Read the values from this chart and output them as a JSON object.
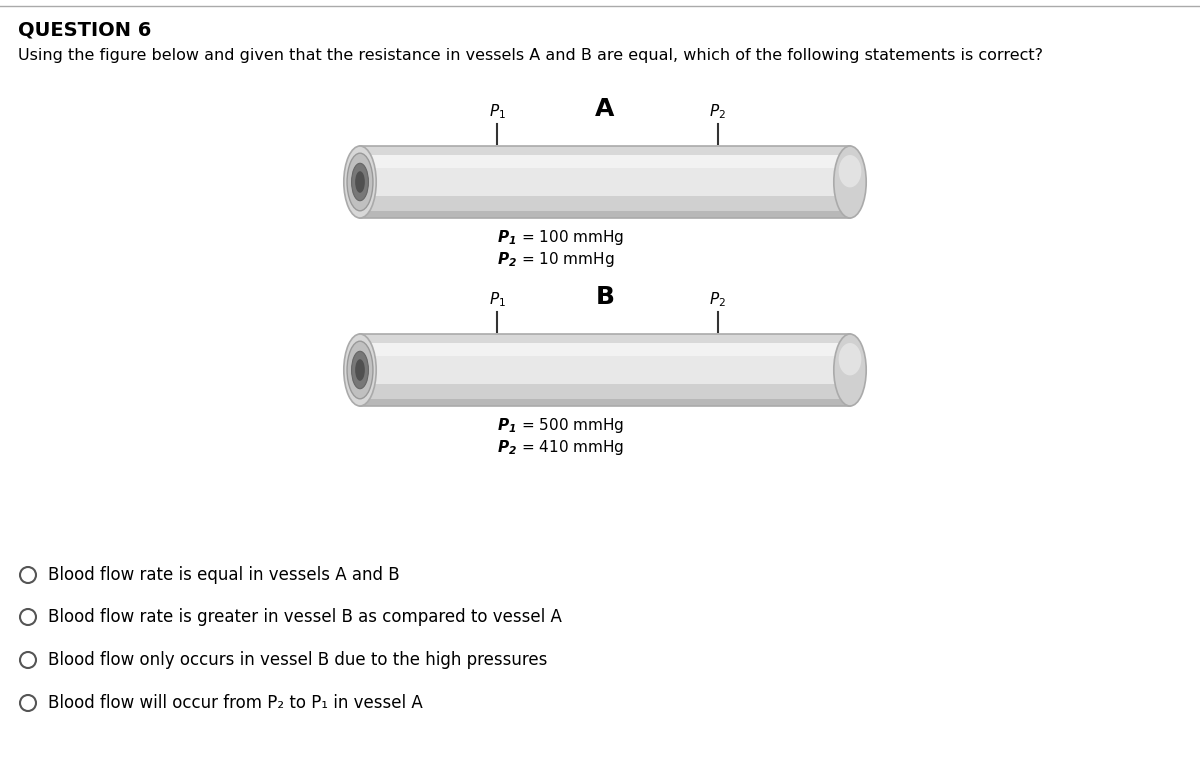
{
  "title": "QUESTION 6",
  "question_text": "Using the figure below and given that the resistance in vessels A and B are equal, which of the following statements is correct?",
  "vessel_A_label": "A",
  "vessel_B_label": "B",
  "vessel_A_p1_val": "100 mmHg",
  "vessel_A_p2_val": "10 mmHg",
  "vessel_B_p1_val": "500 mmHg",
  "vessel_B_p2_val": "410 mmHg",
  "choices": [
    "Blood flow rate is equal in vessels A and B",
    "Blood flow rate is greater in vessel B as compared to vessel A",
    "Blood flow only occurs in vessel B due to the high pressures",
    "Blood flow will occur from P₂ to P₁ in vessel A"
  ],
  "background_color": "#ffffff",
  "text_color": "#000000",
  "title_fontsize": 13,
  "question_fontsize": 12,
  "choice_fontsize": 12
}
